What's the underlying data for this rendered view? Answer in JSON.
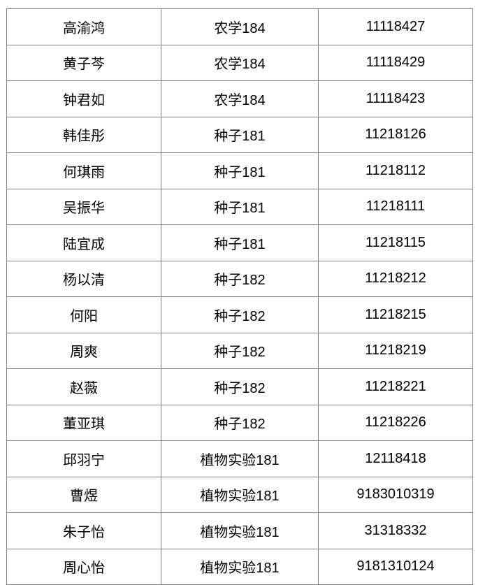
{
  "colors": {
    "border": "#808080",
    "text": "#000000",
    "background": "#ffffff"
  },
  "table": {
    "rows": [
      {
        "name": "高渝鸿",
        "class": "农学184",
        "id": "11118427"
      },
      {
        "name": "黄子芩",
        "class": "农学184",
        "id": "11118429"
      },
      {
        "name": "钟君如",
        "class": "农学184",
        "id": "11118423"
      },
      {
        "name": "韩佳彤",
        "class": "种子181",
        "id": "11218126"
      },
      {
        "name": "何琪雨",
        "class": "种子181",
        "id": "11218112"
      },
      {
        "name": "吴振华",
        "class": "种子181",
        "id": "11218111"
      },
      {
        "name": "陆宜成",
        "class": "种子181",
        "id": "11218115"
      },
      {
        "name": "杨以清",
        "class": "种子182",
        "id": "11218212"
      },
      {
        "name": "何阳",
        "class": "种子182",
        "id": "11218215"
      },
      {
        "name": "周爽",
        "class": "种子182",
        "id": "11218219"
      },
      {
        "name": "赵薇",
        "class": "种子182",
        "id": "11218221"
      },
      {
        "name": "董亚琪",
        "class": "种子182",
        "id": "11218226"
      },
      {
        "name": "邱羽宁",
        "class": "植物实验181",
        "id": "12118418"
      },
      {
        "name": "曹煜",
        "class": "植物实验181",
        "id": "9183010319"
      },
      {
        "name": "朱子怡",
        "class": "植物实验181",
        "id": "31318332"
      },
      {
        "name": "周心怡",
        "class": "植物实验181",
        "id": "9181310124"
      }
    ]
  }
}
